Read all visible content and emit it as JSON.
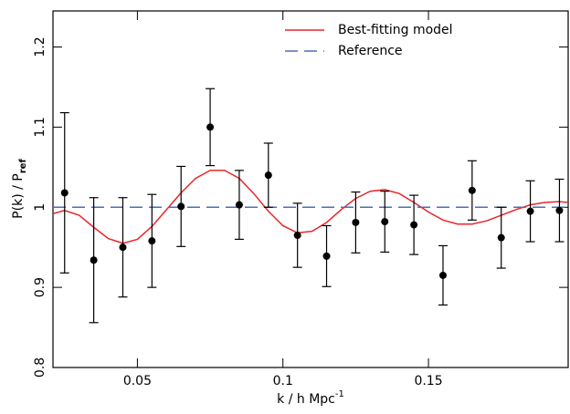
{
  "chart_data": {
    "type": "errorbar",
    "x_label": "k / h Mpc",
    "x_label_sup": "-1",
    "y_label": "P(k) / P",
    "y_label_sub": "ref",
    "xlim": [
      0.021,
      0.198
    ],
    "ylim": [
      0.8,
      1.245
    ],
    "xticks": [
      0.05,
      0.1,
      0.15
    ],
    "yticks": [
      0.8,
      0.9,
      1,
      1.1,
      1.2
    ],
    "points": {
      "x": [
        0.025,
        0.035,
        0.045,
        0.055,
        0.065,
        0.075,
        0.085,
        0.095,
        0.105,
        0.115,
        0.125,
        0.135,
        0.145,
        0.155,
        0.165,
        0.175,
        0.185,
        0.195
      ],
      "values": [
        1.018,
        0.934,
        0.95,
        0.958,
        1.001,
        1.1,
        1.003,
        1.04,
        0.965,
        0.939,
        0.981,
        0.982,
        0.978,
        0.915,
        1.021,
        0.962,
        0.995,
        0.996
      ],
      "errors": [
        0.1,
        0.078,
        0.062,
        0.058,
        0.05,
        0.048,
        0.043,
        0.04,
        0.04,
        0.038,
        0.038,
        0.038,
        0.037,
        0.037,
        0.037,
        0.038,
        0.038,
        0.039
      ],
      "color": "#000000"
    },
    "series": [
      {
        "name": "Best-fitting model",
        "color": "#e8262a",
        "dashed": false,
        "x": [
          0.021,
          0.025,
          0.03,
          0.035,
          0.04,
          0.045,
          0.05,
          0.055,
          0.06,
          0.065,
          0.07,
          0.075,
          0.08,
          0.085,
          0.09,
          0.095,
          0.1,
          0.105,
          0.11,
          0.115,
          0.12,
          0.125,
          0.13,
          0.135,
          0.14,
          0.145,
          0.15,
          0.155,
          0.16,
          0.165,
          0.17,
          0.175,
          0.18,
          0.185,
          0.19,
          0.195,
          0.198
        ],
        "values": [
          0.992,
          0.996,
          0.99,
          0.975,
          0.961,
          0.955,
          0.96,
          0.976,
          0.997,
          1.018,
          1.036,
          1.046,
          1.046,
          1.036,
          1.017,
          0.995,
          0.977,
          0.968,
          0.97,
          0.981,
          0.997,
          1.011,
          1.02,
          1.022,
          1.017,
          1.006,
          0.994,
          0.984,
          0.979,
          0.979,
          0.983,
          0.99,
          0.997,
          1.003,
          1.006,
          1.007,
          1.006
        ]
      },
      {
        "name": "Reference",
        "color": "#4a6fb5",
        "dashed": true,
        "x": [
          0.021,
          0.198
        ],
        "values": [
          1,
          1
        ]
      }
    ]
  }
}
